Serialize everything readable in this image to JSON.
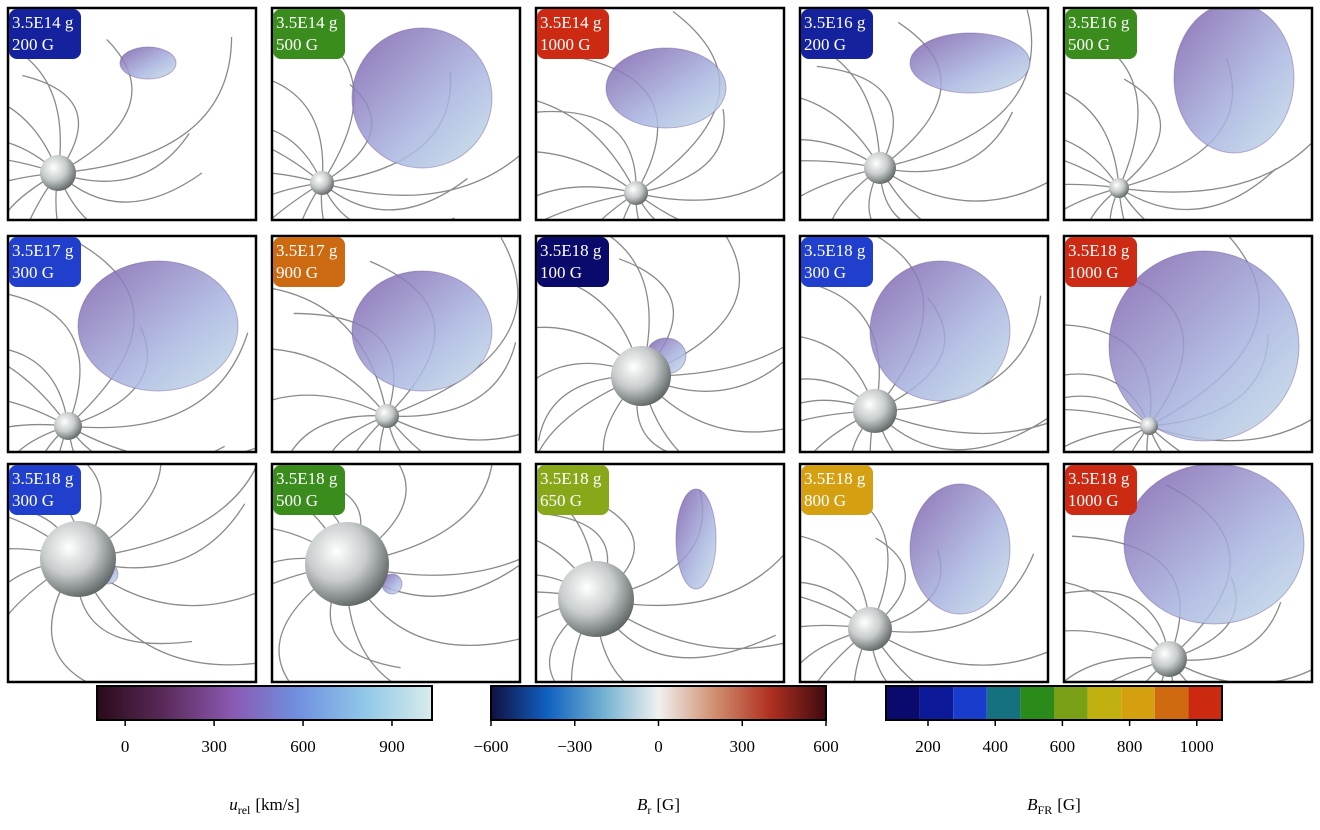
{
  "panels": [
    {
      "mass": "3.5E14 g",
      "field": "200 G",
      "color": "#14229e"
    },
    {
      "mass": "3.5E14 g",
      "field": "500 G",
      "color": "#3a8c1c"
    },
    {
      "mass": "3.5E14 g",
      "field": "1000 G",
      "color": "#cc2a12"
    },
    {
      "mass": "3.5E16 g",
      "field": "200 G",
      "color": "#14229e"
    },
    {
      "mass": "3.5E16 g",
      "field": "500 G",
      "color": "#3a8c1c"
    },
    {
      "mass": "3.5E17 g",
      "field": "300 G",
      "color": "#1f3fcc"
    },
    {
      "mass": "3.5E17 g",
      "field": "900 G",
      "color": "#cc6a12"
    },
    {
      "mass": "3.5E18 g",
      "field": "100 G",
      "color": "#0a0a6a"
    },
    {
      "mass": "3.5E18 g",
      "field": "300 G",
      "color": "#1f3fcc"
    },
    {
      "mass": "3.5E18 g",
      "field": "1000 G",
      "color": "#cc2a12"
    },
    {
      "mass": "3.5E18 g",
      "field": "300 G",
      "color": "#1f3fcc"
    },
    {
      "mass": "3.5E18 g",
      "field": "500 G",
      "color": "#3a8c1c"
    },
    {
      "mass": "3.5E18 g",
      "field": "650 G",
      "color": "#88a81a"
    },
    {
      "mass": "3.5E18 g",
      "field": "800 G",
      "color": "#d4a012"
    },
    {
      "mass": "3.5E18 g",
      "field": "1000 G",
      "color": "#cc2a12"
    }
  ],
  "colorbars": [
    {
      "label": {
        "symbol": "u",
        "subscript": "rel",
        "unit": "[km/s]"
      },
      "lim": [
        -95,
        1035
      ],
      "ticks": [
        0,
        300,
        600,
        900
      ],
      "colors": [
        "#2a0a1a",
        "#5a2a5a",
        "#8a58b0",
        "#7090e0",
        "#90c8e8",
        "#d8ecec"
      ]
    },
    {
      "label": {
        "symbol": "B",
        "subscript": "r",
        "unit": "[G]"
      },
      "lim": [
        -600,
        600
      ],
      "ticks": [
        {
          "value": -600,
          "label": "−600"
        },
        {
          "value": -300,
          "label": "−300"
        },
        0,
        300,
        600
      ],
      "colors": [
        "#101040",
        "#1060c0",
        "#70b0d0",
        "#f0f0f0",
        "#d09070",
        "#b03020",
        "#400a10"
      ]
    },
    {
      "label": {
        "symbol": "B",
        "subscript": "FR",
        "unit": "[G]"
      },
      "lim": [
        75,
        1075
      ],
      "ticks": [
        200,
        400,
        600,
        800,
        1000
      ],
      "bins": [
        75,
        175,
        275,
        375,
        475,
        575,
        675,
        775,
        875,
        975,
        1075
      ],
      "colors": [
        "#0a0a6e",
        "#0c1a9a",
        "#1a3ccc",
        "#157080",
        "#2a8a1a",
        "#7aa018",
        "#c0b010",
        "#d4a010",
        "#d06a10",
        "#cc2a10"
      ]
    }
  ]
}
